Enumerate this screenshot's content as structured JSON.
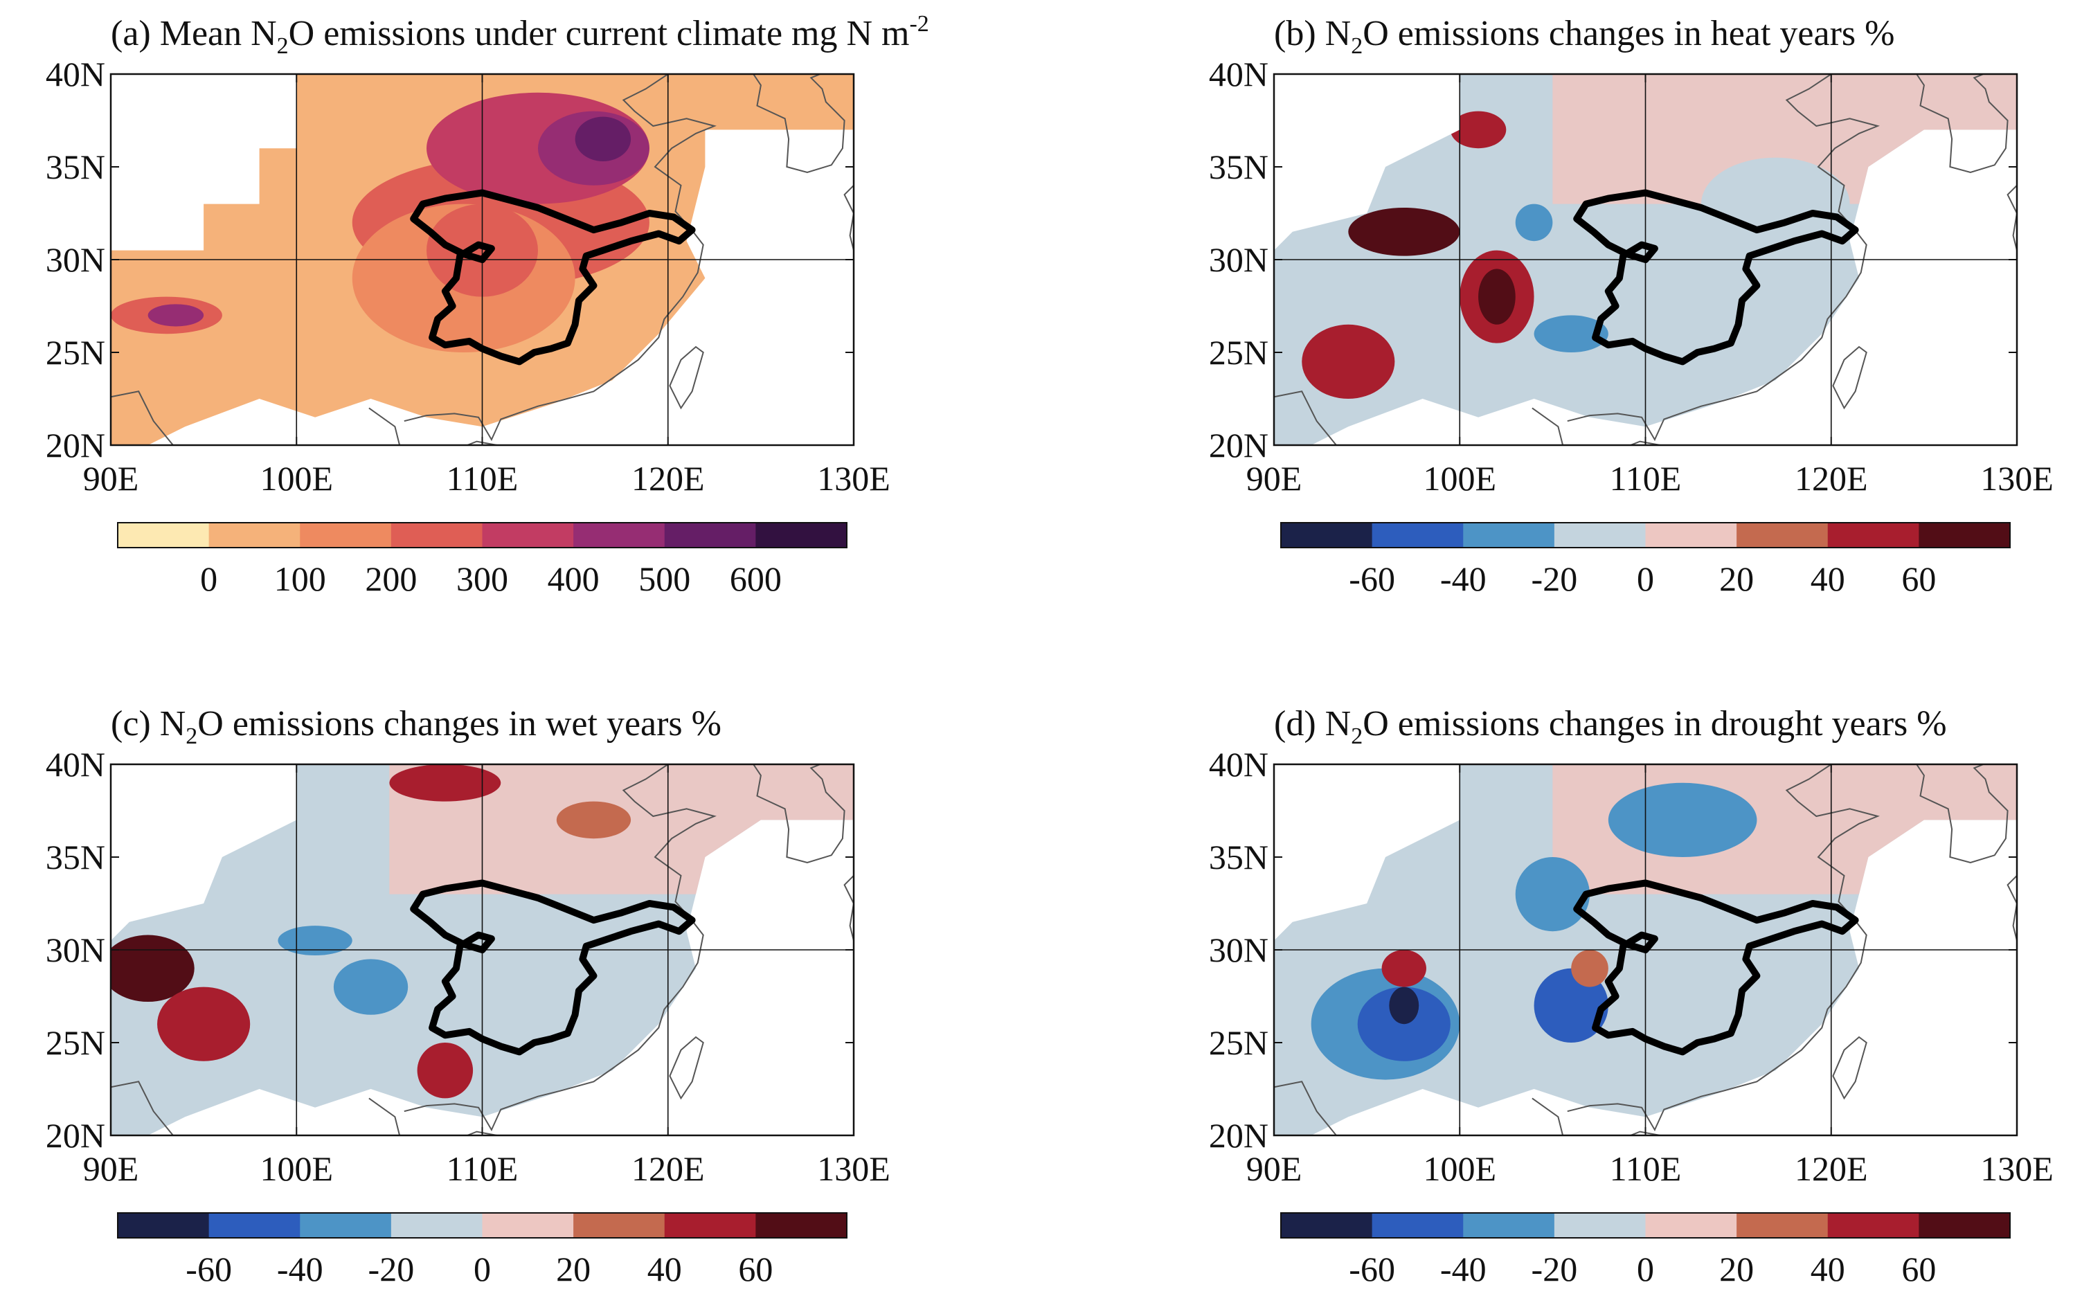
{
  "chart_data": [
    {
      "type": "heatmap",
      "panel": "a",
      "title": "(a) Mean N",
      "title_sub": "2",
      "title_rest": "O emissions under current climate mg N m",
      "title_sup": "-2",
      "xlim": [
        90,
        130
      ],
      "ylim": [
        20,
        40
      ],
      "x_ticks": [
        "90E",
        "100E",
        "110E",
        "120E",
        "130E"
      ],
      "y_ticks": [
        "20N",
        "25N",
        "30N",
        "35N",
        "40N"
      ],
      "colorbar_labels": [
        "0",
        "100",
        "200",
        "300",
        "400",
        "500",
        "600"
      ],
      "colorbar_colors": [
        "#fde9b2",
        "#f5b27a",
        "#ee8a60",
        "#df5e55",
        "#c23c63",
        "#962d73",
        "#651e66",
        "#321140"
      ],
      "blobs": [
        {
          "lon": 111,
          "lat": 32,
          "rx": 8,
          "ry": 3.5,
          "level": 3
        },
        {
          "lon": 113,
          "lat": 36,
          "rx": 6,
          "ry": 3,
          "level": 4
        },
        {
          "lon": 116,
          "lat": 36,
          "rx": 3,
          "ry": 2,
          "level": 5
        },
        {
          "lon": 116.5,
          "lat": 36.5,
          "rx": 1.5,
          "ry": 1.2,
          "level": 6
        },
        {
          "lon": 109,
          "lat": 29,
          "rx": 6,
          "ry": 4,
          "level": 2
        },
        {
          "lon": 110,
          "lat": 30.5,
          "rx": 3,
          "ry": 2.5,
          "level": 3
        },
        {
          "lon": 93,
          "lat": 27,
          "rx": 3,
          "ry": 1.0,
          "level": 3
        },
        {
          "lon": 93.5,
          "lat": 27,
          "rx": 1.5,
          "ry": 0.6,
          "level": 5
        }
      ]
    },
    {
      "type": "heatmap",
      "panel": "b",
      "title": "(b) N",
      "title_sub": "2",
      "title_rest": "O emissions changes in heat years %",
      "xlim": [
        90,
        130
      ],
      "ylim": [
        20,
        40
      ],
      "x_ticks": [
        "90E",
        "100E",
        "110E",
        "120E",
        "130E"
      ],
      "y_ticks": [
        "20N",
        "25N",
        "30N",
        "35N",
        "40N"
      ],
      "colorbar_labels": [
        "-60",
        "-40",
        "-20",
        "0",
        "20",
        "40",
        "60"
      ],
      "colorbar_colors": [
        "#1b2249",
        "#2d5dbd",
        "#4d94c6",
        "#c4d4de",
        "#edc7c2",
        "#c46a4f",
        "#a81e2e",
        "#520d16"
      ],
      "blobs": [
        {
          "lon": 113,
          "lat": 28,
          "rx": 7,
          "ry": 4,
          "level": 3
        },
        {
          "lon": 117,
          "lat": 33,
          "rx": 4,
          "ry": 2.5,
          "level": 3
        },
        {
          "lon": 102,
          "lat": 28,
          "rx": 2,
          "ry": 2.5,
          "level": 6
        },
        {
          "lon": 102,
          "lat": 28,
          "rx": 1,
          "ry": 1.5,
          "level": 7
        },
        {
          "lon": 97,
          "lat": 31.5,
          "rx": 3,
          "ry": 1.3,
          "level": 7
        },
        {
          "lon": 94,
          "lat": 24.5,
          "rx": 2.5,
          "ry": 2,
          "level": 6
        },
        {
          "lon": 101,
          "lat": 37,
          "rx": 1.5,
          "ry": 1,
          "level": 6
        },
        {
          "lon": 106,
          "lat": 26,
          "rx": 2,
          "ry": 1,
          "level": 2
        },
        {
          "lon": 104,
          "lat": 32,
          "rx": 1,
          "ry": 1,
          "level": 2
        }
      ]
    },
    {
      "type": "heatmap",
      "panel": "c",
      "title": "(c) N",
      "title_sub": "2",
      "title_rest": "O emissions changes in wet years %",
      "xlim": [
        90,
        130
      ],
      "ylim": [
        20,
        40
      ],
      "x_ticks": [
        "90E",
        "100E",
        "110E",
        "120E",
        "130E"
      ],
      "y_ticks": [
        "20N",
        "25N",
        "30N",
        "35N",
        "40N"
      ],
      "colorbar_labels": [
        "-60",
        "-40",
        "-20",
        "0",
        "20",
        "40",
        "60"
      ],
      "colorbar_colors": [
        "#1b2249",
        "#2d5dbd",
        "#4d94c6",
        "#c4d4de",
        "#edc7c2",
        "#c46a4f",
        "#a81e2e",
        "#520d16"
      ],
      "blobs": [
        {
          "lon": 92,
          "lat": 29,
          "rx": 2.5,
          "ry": 1.8,
          "level": 7
        },
        {
          "lon": 95,
          "lat": 26,
          "rx": 2.5,
          "ry": 2,
          "level": 6
        },
        {
          "lon": 108,
          "lat": 39,
          "rx": 3,
          "ry": 1,
          "level": 6
        },
        {
          "lon": 104,
          "lat": 28,
          "rx": 2,
          "ry": 1.5,
          "level": 2
        },
        {
          "lon": 108,
          "lat": 23.5,
          "rx": 1.5,
          "ry": 1.5,
          "level": 6
        },
        {
          "lon": 101,
          "lat": 30.5,
          "rx": 2,
          "ry": 0.8,
          "level": 2
        },
        {
          "lon": 116,
          "lat": 37,
          "rx": 2,
          "ry": 1,
          "level": 5
        }
      ]
    },
    {
      "type": "heatmap",
      "panel": "d",
      "title": "(d) N",
      "title_sub": "2",
      "title_rest": "O emissions changes in drought years %",
      "xlim": [
        90,
        130
      ],
      "ylim": [
        20,
        40
      ],
      "x_ticks": [
        "90E",
        "100E",
        "110E",
        "120E",
        "130E"
      ],
      "y_ticks": [
        "20N",
        "25N",
        "30N",
        "35N",
        "40N"
      ],
      "colorbar_labels": [
        "-60",
        "-40",
        "-20",
        "0",
        "20",
        "40",
        "60"
      ],
      "colorbar_colors": [
        "#1b2249",
        "#2d5dbd",
        "#4d94c6",
        "#c4d4de",
        "#edc7c2",
        "#c46a4f",
        "#a81e2e",
        "#520d16"
      ],
      "blobs": [
        {
          "lon": 96,
          "lat": 26,
          "rx": 4,
          "ry": 3,
          "level": 2
        },
        {
          "lon": 97,
          "lat": 26,
          "rx": 2.5,
          "ry": 2,
          "level": 1
        },
        {
          "lon": 97,
          "lat": 27,
          "rx": 0.8,
          "ry": 1,
          "level": 0
        },
        {
          "lon": 112,
          "lat": 37,
          "rx": 4,
          "ry": 2,
          "level": 2
        },
        {
          "lon": 105,
          "lat": 33,
          "rx": 2,
          "ry": 2,
          "level": 2
        },
        {
          "lon": 106,
          "lat": 27,
          "rx": 2,
          "ry": 2,
          "level": 1
        },
        {
          "lon": 97,
          "lat": 29,
          "rx": 1.2,
          "ry": 1,
          "level": 6
        },
        {
          "lon": 107,
          "lat": 29,
          "rx": 1,
          "ry": 1,
          "level": 5
        }
      ]
    }
  ]
}
